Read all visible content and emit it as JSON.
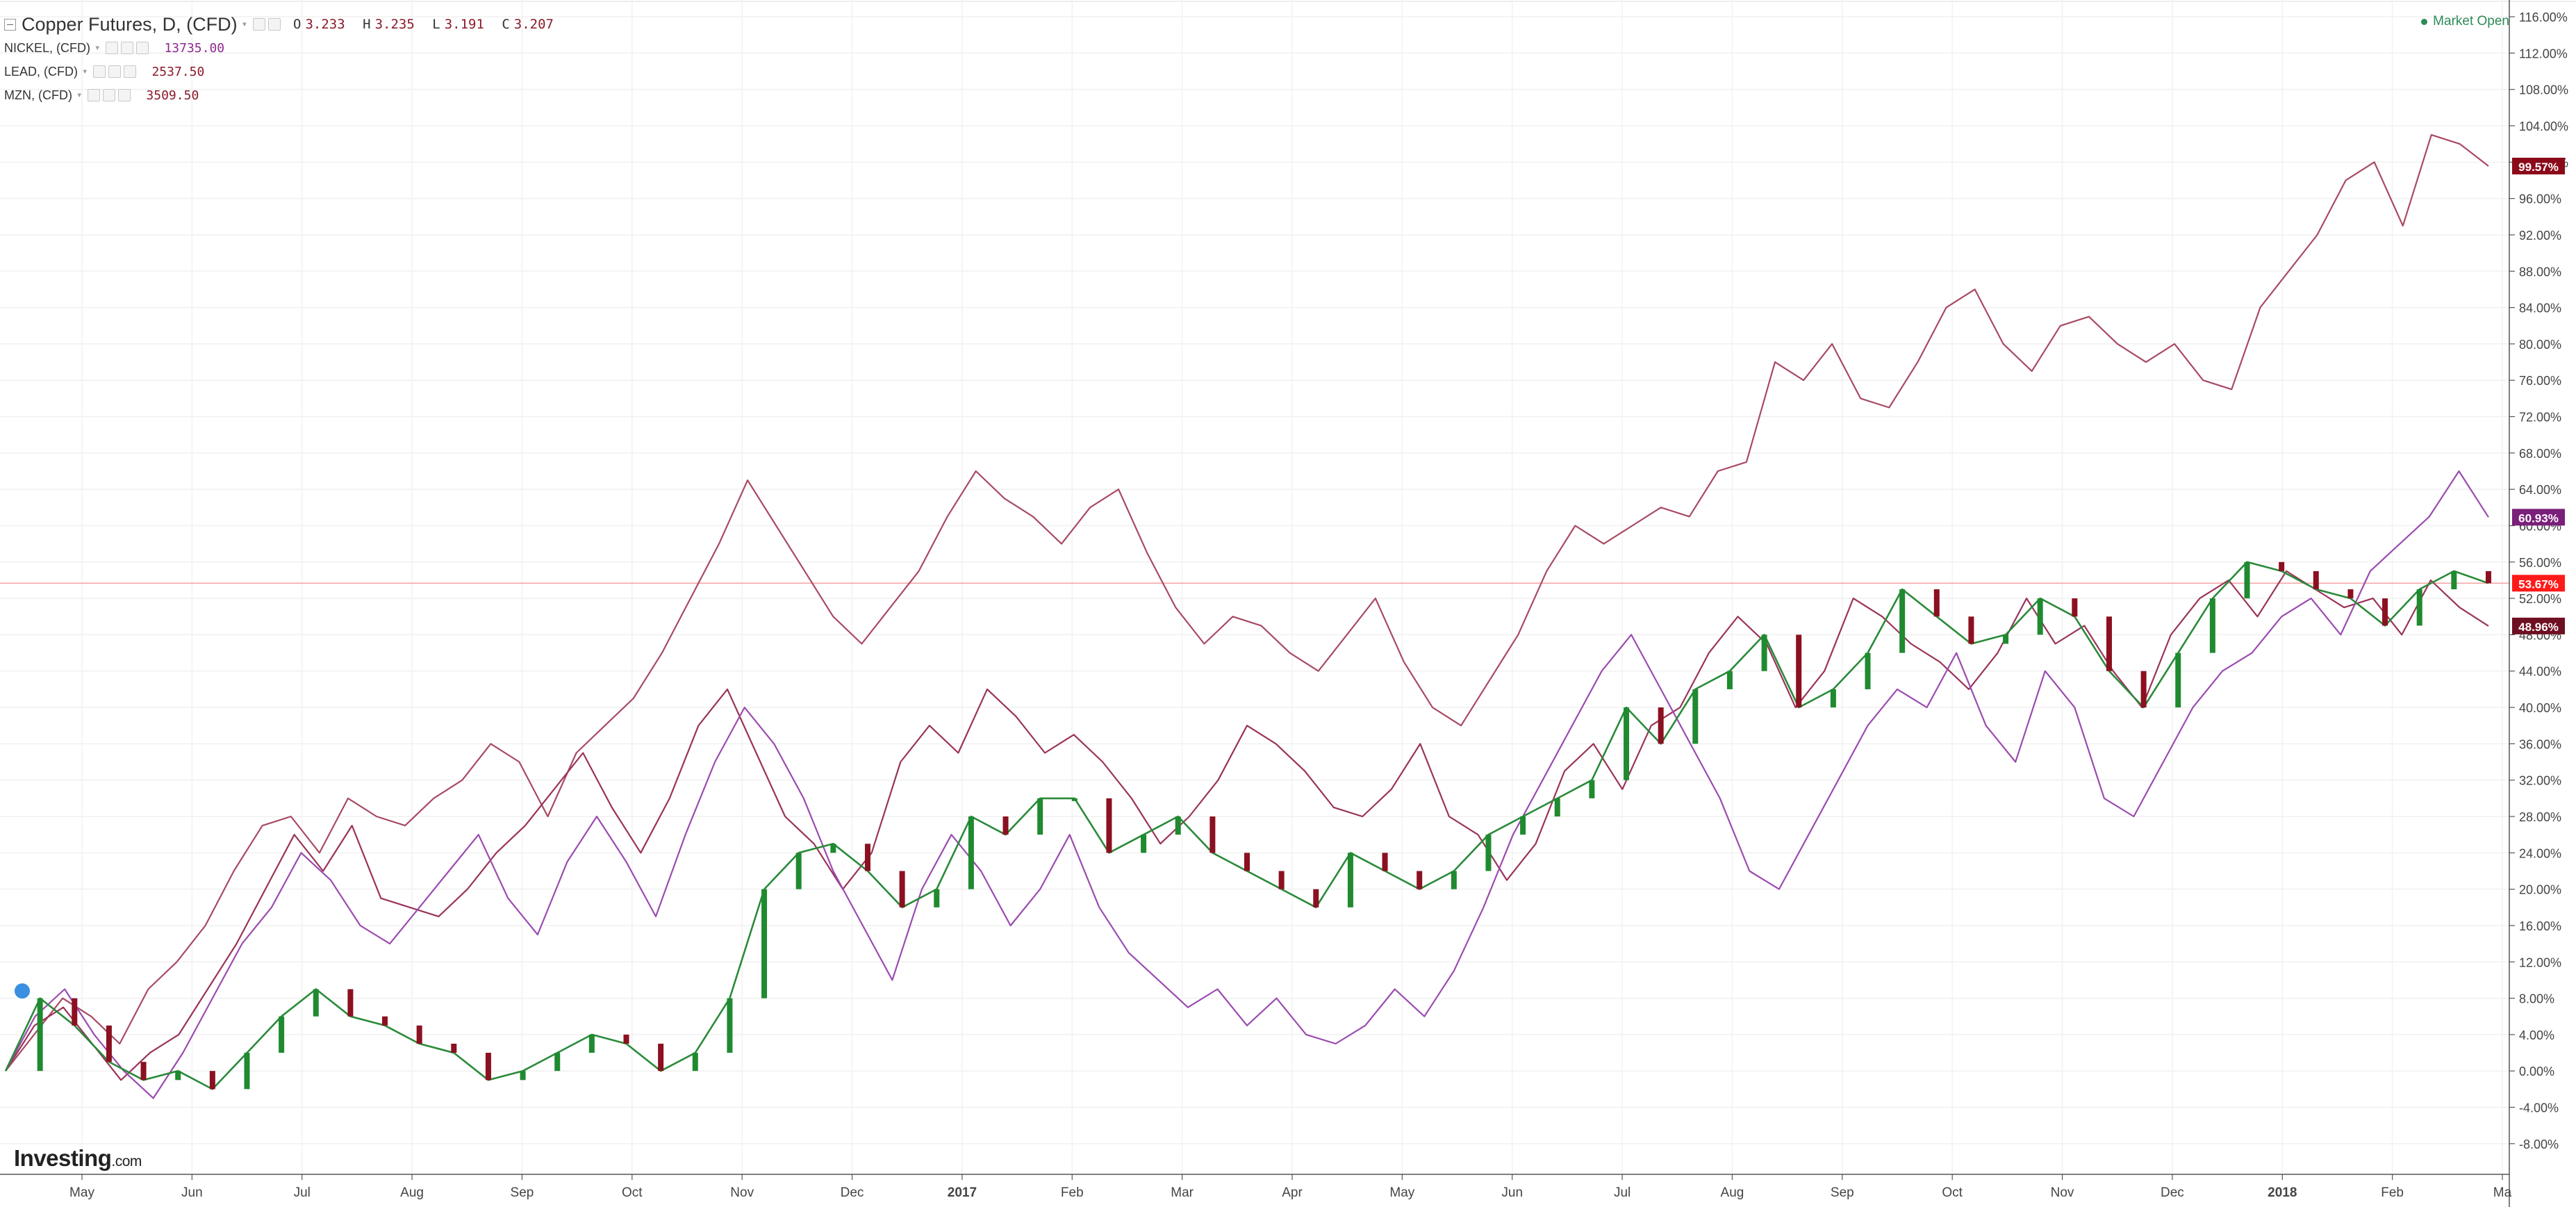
{
  "legend": {
    "main": {
      "name": "Copper Futures, D, (CFD)",
      "o_label": "O",
      "o": "3.233",
      "h_label": "H",
      "h": "3.235",
      "l_label": "L",
      "l": "3.191",
      "c_label": "C",
      "c": "3.207"
    },
    "overlays": [
      {
        "name": "NICKEL, (CFD)",
        "value": "13735.00",
        "color": "#8e2a8e"
      },
      {
        "name": "LEAD, (CFD)",
        "value": "2537.50",
        "color": "#8b1a2b"
      },
      {
        "name": "MZN, (CFD)",
        "value": "3509.50",
        "color": "#8b1a2b"
      }
    ]
  },
  "status": {
    "market": "Market Open"
  },
  "logo": {
    "text": "Investing",
    "suffix": ".com"
  },
  "chart_data": {
    "type": "line",
    "x_labels": [
      "May",
      "Jun",
      "Jul",
      "Aug",
      "Sep",
      "Oct",
      "Nov",
      "Dec",
      "2017",
      "Feb",
      "Mar",
      "Apr",
      "May",
      "Jun",
      "Jul",
      "Aug",
      "Sep",
      "Oct",
      "Nov",
      "Dec",
      "2018",
      "Feb",
      "Ma"
    ],
    "bold_x_labels": [
      "2017",
      "2018"
    ],
    "y_ticks": [
      "116.00%",
      "112.00%",
      "108.00%",
      "104.00%",
      "100.00%",
      "96.00%",
      "92.00%",
      "88.00%",
      "84.00%",
      "80.00%",
      "76.00%",
      "72.00%",
      "68.00%",
      "64.00%",
      "60.00%",
      "56.00%",
      "52.00%",
      "48.00%",
      "44.00%",
      "40.00%",
      "36.00%",
      "32.00%",
      "28.00%",
      "24.00%",
      "20.00%",
      "16.00%",
      "12.00%",
      "8.00%",
      "4.00%",
      "0.00%",
      "-4.00%",
      "-8.00%"
    ],
    "ylim": [
      -10,
      117
    ],
    "price_line": 53.67,
    "price_badges": [
      {
        "label": "99.57%",
        "value": 99.57,
        "color": "#8b0a1a"
      },
      {
        "label": "60.93%",
        "value": 60.93,
        "color": "#7a1f7a"
      },
      {
        "label": "53.67%",
        "value": 53.67,
        "color": "#ff1a1a"
      },
      {
        "label": "48.96%",
        "value": 48.96,
        "color": "#6e0f22"
      }
    ],
    "series": [
      {
        "name": "MZN, (CFD)",
        "color": "#a84a63",
        "values": [
          0,
          4,
          8,
          6,
          3,
          9,
          12,
          16,
          22,
          27,
          28,
          24,
          30,
          28,
          27,
          30,
          32,
          36,
          34,
          28,
          35,
          38,
          41,
          46,
          52,
          58,
          65,
          60,
          55,
          50,
          47,
          51,
          55,
          61,
          66,
          63,
          61,
          58,
          62,
          64,
          57,
          51,
          47,
          50,
          49,
          46,
          44,
          48,
          52,
          45,
          40,
          38,
          43,
          48,
          55,
          60,
          58,
          60,
          62,
          61,
          66,
          67,
          78,
          76,
          80,
          74,
          73,
          78,
          84,
          86,
          80,
          77,
          82,
          83,
          80,
          78,
          80,
          76,
          75,
          84,
          88,
          92,
          98,
          100,
          93,
          103,
          102,
          99.57
        ]
      },
      {
        "name": "LEAD, (CFD)",
        "color": "#9a3358",
        "values": [
          0,
          5,
          7,
          3,
          -1,
          2,
          4,
          9,
          14,
          20,
          26,
          22,
          27,
          19,
          18,
          17,
          20,
          24,
          27,
          31,
          35,
          29,
          24,
          30,
          38,
          42,
          35,
          28,
          25,
          20,
          24,
          34,
          38,
          35,
          42,
          39,
          35,
          37,
          34,
          30,
          25,
          28,
          32,
          38,
          36,
          33,
          29,
          28,
          31,
          36,
          28,
          26,
          21,
          25,
          33,
          36,
          31,
          38,
          40,
          46,
          50,
          47,
          40,
          44,
          52,
          50,
          47,
          45,
          42,
          46,
          52,
          47,
          49,
          44,
          40,
          48,
          52,
          54,
          50,
          55,
          53,
          51,
          52,
          48,
          54,
          51,
          48.96
        ]
      },
      {
        "name": "NICKEL, (CFD)",
        "color": "#9b4bb0",
        "values": [
          0,
          6,
          9,
          4,
          0,
          -3,
          2,
          8,
          14,
          18,
          24,
          21,
          16,
          14,
          18,
          22,
          26,
          19,
          15,
          23,
          28,
          23,
          17,
          26,
          34,
          40,
          36,
          30,
          22,
          16,
          10,
          20,
          26,
          22,
          16,
          20,
          26,
          18,
          13,
          10,
          7,
          9,
          5,
          8,
          4,
          3,
          5,
          9,
          6,
          11,
          18,
          26,
          32,
          38,
          44,
          48,
          42,
          36,
          30,
          22,
          20,
          26,
          32,
          38,
          42,
          40,
          46,
          38,
          34,
          44,
          40,
          30,
          28,
          34,
          40,
          44,
          46,
          50,
          52,
          48,
          55,
          58,
          61,
          66,
          60.93
        ]
      },
      {
        "name": "Copper Futures, D, (CFD)",
        "color": "#2a8a3a",
        "values": [
          0,
          8,
          5,
          1,
          -1,
          0,
          -2,
          2,
          6,
          9,
          6,
          5,
          3,
          2,
          -1,
          0,
          2,
          4,
          3,
          0,
          2,
          8,
          20,
          24,
          25,
          22,
          18,
          20,
          28,
          26,
          30,
          30,
          24,
          26,
          28,
          24,
          22,
          20,
          18,
          24,
          22,
          20,
          22,
          26,
          28,
          30,
          32,
          40,
          36,
          42,
          44,
          48,
          40,
          42,
          46,
          53,
          50,
          47,
          48,
          52,
          50,
          44,
          40,
          46,
          52,
          56,
          55,
          53,
          52,
          49,
          53,
          55,
          53.67
        ]
      }
    ]
  }
}
